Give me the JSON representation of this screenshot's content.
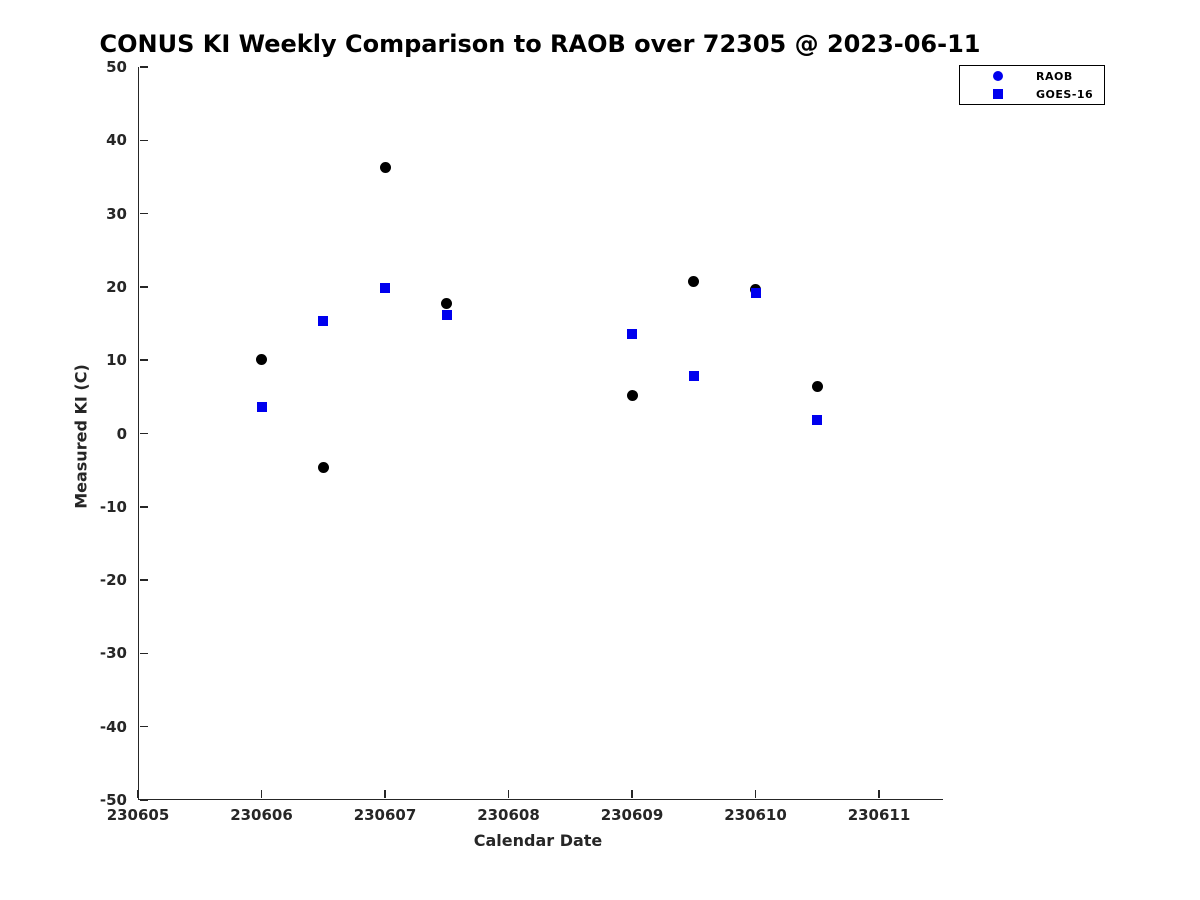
{
  "title": "CONUS KI Weekly Comparison to RAOB over 72305 @ 2023-06-11",
  "colors": {
    "axis": "#262626",
    "raob_plot_marker": "#000000",
    "goes16_plot_marker": "#0000ee",
    "legend_marker": "#0000ee",
    "background": "#ffffff"
  },
  "legend": {
    "position": "top-right-outside",
    "items": [
      {
        "label": "RAOB",
        "marker": "circle-icon"
      },
      {
        "label": "GOES-16",
        "marker": "square-icon"
      }
    ]
  },
  "chart_data": {
    "type": "scatter",
    "title": "CONUS KI Weekly Comparison to RAOB over 72305 @ 2023-06-11",
    "xlabel": "Calendar Date",
    "ylabel": "Measured KI (C)",
    "x_tick_labels": [
      "230605",
      "230606",
      "230607",
      "230608",
      "230609",
      "230610",
      "230611"
    ],
    "y_tick_labels": [
      "50",
      "40",
      "30",
      "20",
      "10",
      "0",
      "-10",
      "-20",
      "-30",
      "-40",
      "-50"
    ],
    "y_ticks": [
      50,
      40,
      30,
      20,
      10,
      0,
      -10,
      -20,
      -30,
      -40,
      -50
    ],
    "ylim": [
      -50,
      50
    ],
    "xlim_days_from_230605": [
      0,
      6.52
    ],
    "grid": false,
    "legend_position": "top-right",
    "series": [
      {
        "name": "RAOB",
        "marker": "circle",
        "color": "#000000",
        "points": [
          {
            "date": "230606.0",
            "day": 1.0,
            "ki": 10.1
          },
          {
            "date": "230606.5",
            "day": 1.5,
            "ki": -4.7
          },
          {
            "date": "230607.0",
            "day": 2.0,
            "ki": 36.3
          },
          {
            "date": "230607.5",
            "day": 2.5,
            "ki": 17.8
          },
          {
            "date": "230609.0",
            "day": 4.0,
            "ki": 5.2
          },
          {
            "date": "230609.5",
            "day": 4.5,
            "ki": 20.7
          },
          {
            "date": "230610.0",
            "day": 5.0,
            "ki": 19.7
          },
          {
            "date": "230610.5",
            "day": 5.5,
            "ki": 6.4
          }
        ]
      },
      {
        "name": "GOES-16",
        "marker": "square",
        "color": "#0000ee",
        "points": [
          {
            "date": "230606.0",
            "day": 1.0,
            "ki": 3.6
          },
          {
            "date": "230606.5",
            "day": 1.5,
            "ki": 15.3
          },
          {
            "date": "230607.0",
            "day": 2.0,
            "ki": 19.8
          },
          {
            "date": "230607.5",
            "day": 2.5,
            "ki": 16.1
          },
          {
            "date": "230609.0",
            "day": 4.0,
            "ki": 13.6
          },
          {
            "date": "230609.5",
            "day": 4.5,
            "ki": 7.8
          },
          {
            "date": "230610.0",
            "day": 5.0,
            "ki": 19.1
          },
          {
            "date": "230610.5",
            "day": 5.5,
            "ki": 1.9
          }
        ]
      }
    ]
  }
}
